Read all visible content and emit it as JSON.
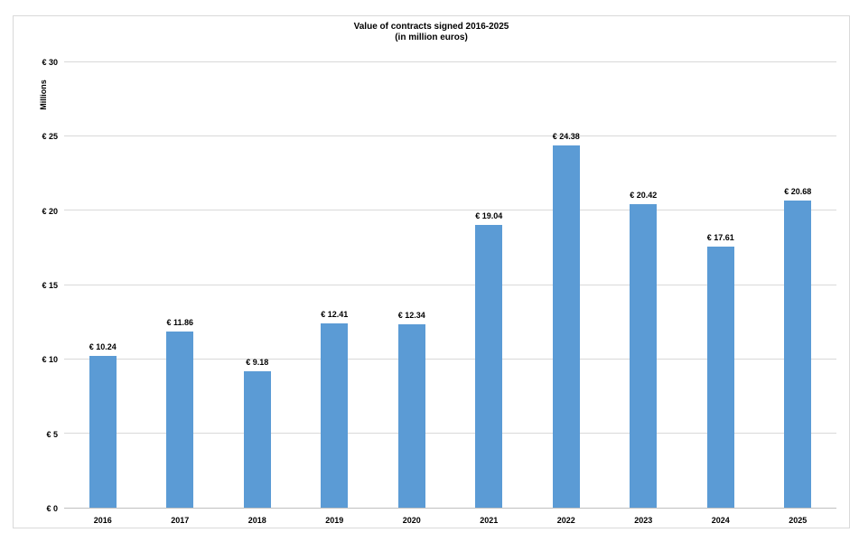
{
  "chart_data": {
    "type": "bar",
    "title": "Value of contracts signed 2016-2025",
    "subtitle": "(in million euros)",
    "ylabel": "Millions",
    "xlabel": "",
    "categories": [
      "2016",
      "2017",
      "2018",
      "2019",
      "2020",
      "2021",
      "2022",
      "2023",
      "2024",
      "2025"
    ],
    "values": [
      10.24,
      11.86,
      9.18,
      12.41,
      12.34,
      19.04,
      24.38,
      20.42,
      17.61,
      20.68
    ],
    "data_labels": [
      "€ 10.24",
      "€ 11.86",
      "€ 9.18",
      "€ 12.41",
      "€ 12.34",
      "€ 19.04",
      "€ 24.38",
      "€ 20.42",
      "€ 17.61",
      "€ 20.68"
    ],
    "ylim": [
      0,
      30
    ],
    "ytick_interval": 5,
    "ytick_labels": [
      "€ 0",
      "€ 5",
      "€ 10",
      "€ 15",
      "€ 20",
      "€ 25",
      "€ 30"
    ],
    "grid": true,
    "legend": "none",
    "colors": {
      "bar": "#5b9bd5",
      "gridline": "#d9d9d9",
      "axis_line": "#bfbfbf",
      "text": "#000000",
      "chart_border": "#d9d9d9"
    }
  }
}
